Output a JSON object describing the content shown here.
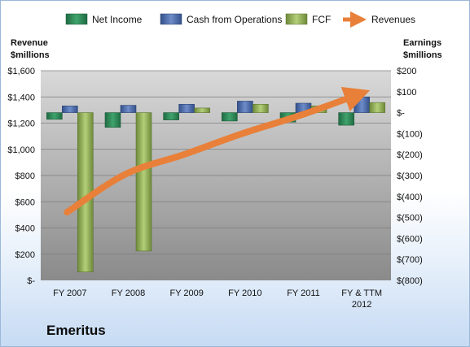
{
  "company": "Emeritus",
  "chart_data": {
    "type": "bar",
    "categories": [
      "FY 2007",
      "FY 2008",
      "FY 2009",
      "FY 2010",
      "FY 2011",
      "FY & TTM 2012"
    ],
    "series": [
      {
        "name": "Net Income",
        "type": "bar",
        "axis": "right",
        "values": [
          -32,
          -70,
          -35,
          -40,
          -45,
          -60
        ]
      },
      {
        "name": "Cash from Operations",
        "type": "bar",
        "axis": "right",
        "values": [
          32,
          35,
          40,
          55,
          45,
          75
        ]
      },
      {
        "name": "FCF",
        "type": "bar",
        "axis": "right",
        "values": [
          -760,
          -660,
          22,
          40,
          32,
          48
        ]
      },
      {
        "name": "Revenues",
        "type": "line",
        "axis": "left",
        "values": [
          520,
          810,
          960,
          1120,
          1260,
          1420
        ]
      }
    ],
    "left_axis": {
      "label_line1": "Revenue",
      "label_line2": "$millions",
      "range": [
        0,
        1600
      ],
      "ticks": [
        "$-",
        "$200",
        "$400",
        "$600",
        "$800",
        "$1,000",
        "$1,200",
        "$1,400",
        "$1,600"
      ]
    },
    "right_axis": {
      "label_line1": "Earnings",
      "label_line2": "$millions",
      "range": [
        -800,
        200
      ],
      "ticks": [
        "$(800)",
        "$(700)",
        "$(600)",
        "$(500)",
        "$(400)",
        "$(300)",
        "$(200)",
        "$(100)",
        "$-",
        "$100",
        "$200"
      ]
    },
    "category_labels": [
      [
        "FY 2007"
      ],
      [
        "FY 2008"
      ],
      [
        "FY 2009"
      ],
      [
        "FY 2010"
      ],
      [
        "FY 2011"
      ],
      [
        "FY & TTM",
        "2012"
      ]
    ],
    "colors": {
      "Net Income": "#2e8b57",
      "Cash from Operations": "#4f6fb0",
      "FCF": "#93b35a",
      "Revenues": "#e8803a"
    },
    "legend_position": "top",
    "grid": true
  }
}
